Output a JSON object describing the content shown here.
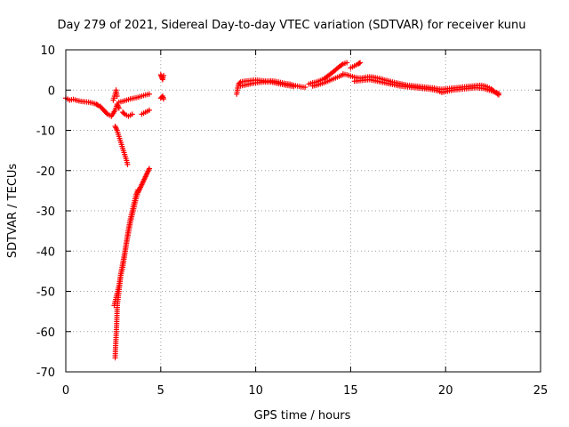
{
  "chart_data": {
    "type": "scatter",
    "title": "Day 279 of 2021, Sidereal Day-to-day VTEC variation (SDTVAR) for receiver kunu",
    "xlabel": "GPS time / hours",
    "ylabel": "SDTVAR / TECUs",
    "xlim": [
      0,
      25
    ],
    "ylim": [
      -70,
      10
    ],
    "xticks": [
      0,
      5,
      10,
      15,
      20,
      25
    ],
    "yticks": [
      10,
      0,
      -10,
      -20,
      -30,
      -40,
      -50,
      -60,
      -70
    ],
    "grid": true,
    "marker": "+",
    "color": "#ff0000",
    "series": [
      {
        "name": "SDTVAR",
        "segments": [
          [
            [
              0.0,
              -2.0
            ],
            [
              0.2,
              -2.5
            ],
            [
              0.4,
              -2.3
            ],
            [
              0.6,
              -2.6
            ],
            [
              0.8,
              -2.8
            ],
            [
              1.0,
              -2.9
            ],
            [
              1.2,
              -3.0
            ],
            [
              1.4,
              -3.2
            ],
            [
              1.6,
              -3.5
            ],
            [
              1.7,
              -3.8
            ]
          ],
          [
            [
              1.8,
              -4.0
            ],
            [
              1.9,
              -4.5
            ],
            [
              2.0,
              -5.0
            ],
            [
              2.1,
              -5.5
            ],
            [
              2.2,
              -6.0
            ],
            [
              2.4,
              -6.5
            ],
            [
              2.6,
              -5.0
            ],
            [
              2.7,
              -3.5
            ],
            [
              2.8,
              -4.5
            ]
          ],
          [
            [
              2.5,
              -2.5
            ],
            [
              2.6,
              -1.0
            ],
            [
              2.65,
              0.0
            ],
            [
              2.7,
              -1.5
            ]
          ],
          [
            [
              2.8,
              -3.0
            ],
            [
              3.0,
              -2.8
            ],
            [
              3.2,
              -2.5
            ],
            [
              3.4,
              -2.2
            ],
            [
              3.6,
              -2.0
            ],
            [
              3.8,
              -1.8
            ],
            [
              4.0,
              -1.5
            ],
            [
              4.2,
              -1.2
            ],
            [
              4.4,
              -1.0
            ]
          ],
          [
            [
              3.0,
              -5.5
            ],
            [
              3.1,
              -6.0
            ],
            [
              3.3,
              -6.5
            ],
            [
              3.5,
              -6.0
            ]
          ],
          [
            [
              4.0,
              -6.0
            ],
            [
              4.2,
              -5.5
            ],
            [
              4.4,
              -5.0
            ]
          ],
          [
            [
              2.6,
              -9.0
            ],
            [
              2.7,
              -10.0
            ],
            [
              2.8,
              -11.5
            ],
            [
              2.9,
              -13.0
            ],
            [
              3.0,
              -14.5
            ],
            [
              3.1,
              -16.0
            ],
            [
              3.2,
              -17.5
            ],
            [
              3.25,
              -18.5
            ]
          ],
          [
            [
              2.6,
              -66.5
            ],
            [
              2.62,
              -64.0
            ],
            [
              2.65,
              -61.0
            ],
            [
              2.68,
              -58.0
            ],
            [
              2.7,
              -55.0
            ],
            [
              2.72,
              -53.0
            ],
            [
              2.75,
              -52.0
            ],
            [
              2.8,
              -50.0
            ],
            [
              2.85,
              -48.0
            ],
            [
              2.9,
              -46.0
            ],
            [
              3.0,
              -44.0
            ],
            [
              3.1,
              -41.0
            ],
            [
              3.2,
              -38.0
            ],
            [
              3.3,
              -35.5
            ],
            [
              3.4,
              -33.0
            ],
            [
              3.5,
              -31.0
            ],
            [
              3.6,
              -29.0
            ],
            [
              3.7,
              -27.0
            ],
            [
              3.8,
              -25.5
            ],
            [
              3.9,
              -24.5
            ],
            [
              4.0,
              -23.5
            ],
            [
              4.1,
              -22.5
            ],
            [
              4.2,
              -21.5
            ],
            [
              4.3,
              -20.5
            ],
            [
              4.4,
              -19.5
            ]
          ],
          [
            [
              2.55,
              -53.5
            ],
            [
              2.6,
              -52.5
            ],
            [
              2.65,
              -51.5
            ],
            [
              2.7,
              -50.5
            ],
            [
              2.8,
              -48.5
            ],
            [
              2.9,
              -45.5
            ],
            [
              3.0,
              -43.0
            ],
            [
              3.1,
              -40.5
            ],
            [
              3.2,
              -37.5
            ],
            [
              3.3,
              -34.5
            ],
            [
              3.4,
              -32.0
            ],
            [
              3.5,
              -30.0
            ],
            [
              3.6,
              -28.0
            ],
            [
              3.7,
              -26.0
            ],
            [
              3.8,
              -24.8
            ]
          ],
          [
            [
              5.0,
              3.8
            ],
            [
              5.05,
              3.2
            ],
            [
              5.1,
              2.6
            ],
            [
              5.15,
              3.6
            ]
          ],
          [
            [
              5.0,
              -2.0
            ],
            [
              5.1,
              -1.5
            ],
            [
              5.15,
              -2.2
            ]
          ],
          [
            [
              9.0,
              -1.0
            ],
            [
              9.05,
              0.5
            ],
            [
              9.1,
              1.5
            ],
            [
              9.2,
              2.0
            ],
            [
              9.4,
              2.2
            ],
            [
              9.6,
              2.3
            ],
            [
              9.8,
              2.4
            ],
            [
              10.0,
              2.5
            ],
            [
              10.2,
              2.4
            ],
            [
              10.4,
              2.3
            ],
            [
              10.6,
              2.2
            ],
            [
              10.8,
              2.3
            ],
            [
              11.0,
              2.2
            ],
            [
              11.2,
              2.0
            ],
            [
              11.4,
              1.8
            ],
            [
              11.6,
              1.6
            ],
            [
              11.8,
              1.5
            ],
            [
              12.0,
              1.2
            ],
            [
              12.2,
              1.0
            ],
            [
              12.4,
              0.8
            ],
            [
              12.6,
              0.7
            ]
          ],
          [
            [
              9.2,
              1.0
            ],
            [
              9.4,
              1.2
            ],
            [
              9.6,
              1.4
            ],
            [
              9.8,
              1.6
            ],
            [
              10.0,
              1.8
            ],
            [
              10.4,
              2.0
            ],
            [
              10.8,
              2.0
            ],
            [
              11.2,
              1.6
            ],
            [
              11.6,
              1.2
            ],
            [
              12.0,
              0.9
            ]
          ],
          [
            [
              12.8,
              1.5
            ],
            [
              13.0,
              1.8
            ],
            [
              13.2,
              2.0
            ],
            [
              13.4,
              2.4
            ],
            [
              13.6,
              2.8
            ],
            [
              13.8,
              3.5
            ],
            [
              14.0,
              4.2
            ],
            [
              14.2,
              5.0
            ],
            [
              14.4,
              5.8
            ],
            [
              14.6,
              6.5
            ],
            [
              14.8,
              6.8
            ]
          ],
          [
            [
              13.0,
              1.0
            ],
            [
              13.2,
              1.2
            ],
            [
              13.4,
              1.5
            ],
            [
              13.6,
              1.8
            ],
            [
              13.8,
              2.2
            ],
            [
              14.0,
              2.6
            ],
            [
              14.2,
              3.0
            ],
            [
              14.4,
              3.4
            ],
            [
              14.6,
              3.8
            ]
          ],
          [
            [
              15.0,
              5.5
            ],
            [
              15.2,
              6.0
            ],
            [
              15.4,
              6.5
            ],
            [
              15.5,
              6.8
            ]
          ],
          [
            [
              14.6,
              4.0
            ],
            [
              14.8,
              3.8
            ],
            [
              15.0,
              3.5
            ],
            [
              15.2,
              3.2
            ],
            [
              15.4,
              3.0
            ],
            [
              15.6,
              3.0
            ],
            [
              15.8,
              3.2
            ],
            [
              16.0,
              3.3
            ],
            [
              16.2,
              3.2
            ],
            [
              16.4,
              3.0
            ],
            [
              16.6,
              2.8
            ],
            [
              16.8,
              2.5
            ],
            [
              17.0,
              2.3
            ],
            [
              17.2,
              2.0
            ],
            [
              17.4,
              1.8
            ],
            [
              17.6,
              1.6
            ],
            [
              17.8,
              1.4
            ],
            [
              18.0,
              1.2
            ],
            [
              18.2,
              1.1
            ],
            [
              18.4,
              1.0
            ],
            [
              18.6,
              0.9
            ],
            [
              18.8,
              0.8
            ],
            [
              19.0,
              0.7
            ],
            [
              19.2,
              0.6
            ],
            [
              19.4,
              0.5
            ],
            [
              19.6,
              0.3
            ],
            [
              19.8,
              0.2
            ],
            [
              20.0,
              0.3
            ],
            [
              20.2,
              0.4
            ],
            [
              20.4,
              0.5
            ],
            [
              20.6,
              0.6
            ],
            [
              20.8,
              0.7
            ],
            [
              21.0,
              0.8
            ],
            [
              21.2,
              0.9
            ],
            [
              21.4,
              1.0
            ],
            [
              21.6,
              1.1
            ],
            [
              21.8,
              1.2
            ],
            [
              22.0,
              1.1
            ],
            [
              22.2,
              0.8
            ],
            [
              22.4,
              0.3
            ],
            [
              22.6,
              -0.5
            ],
            [
              22.8,
              -1.2
            ]
          ],
          [
            [
              15.2,
              2.2
            ],
            [
              15.6,
              2.4
            ],
            [
              16.0,
              2.6
            ],
            [
              16.4,
              2.2
            ],
            [
              16.8,
              1.8
            ],
            [
              17.2,
              1.4
            ],
            [
              17.6,
              1.0
            ],
            [
              18.0,
              0.8
            ],
            [
              18.4,
              0.6
            ],
            [
              18.8,
              0.4
            ],
            [
              19.2,
              0.2
            ],
            [
              19.6,
              -0.2
            ],
            [
              19.8,
              -0.6
            ],
            [
              20.0,
              -0.4
            ],
            [
              20.4,
              0.0
            ],
            [
              20.8,
              0.2
            ],
            [
              21.2,
              0.4
            ],
            [
              21.6,
              0.6
            ],
            [
              22.0,
              0.4
            ],
            [
              22.4,
              -0.2
            ],
            [
              22.8,
              -0.8
            ]
          ]
        ]
      }
    ]
  }
}
